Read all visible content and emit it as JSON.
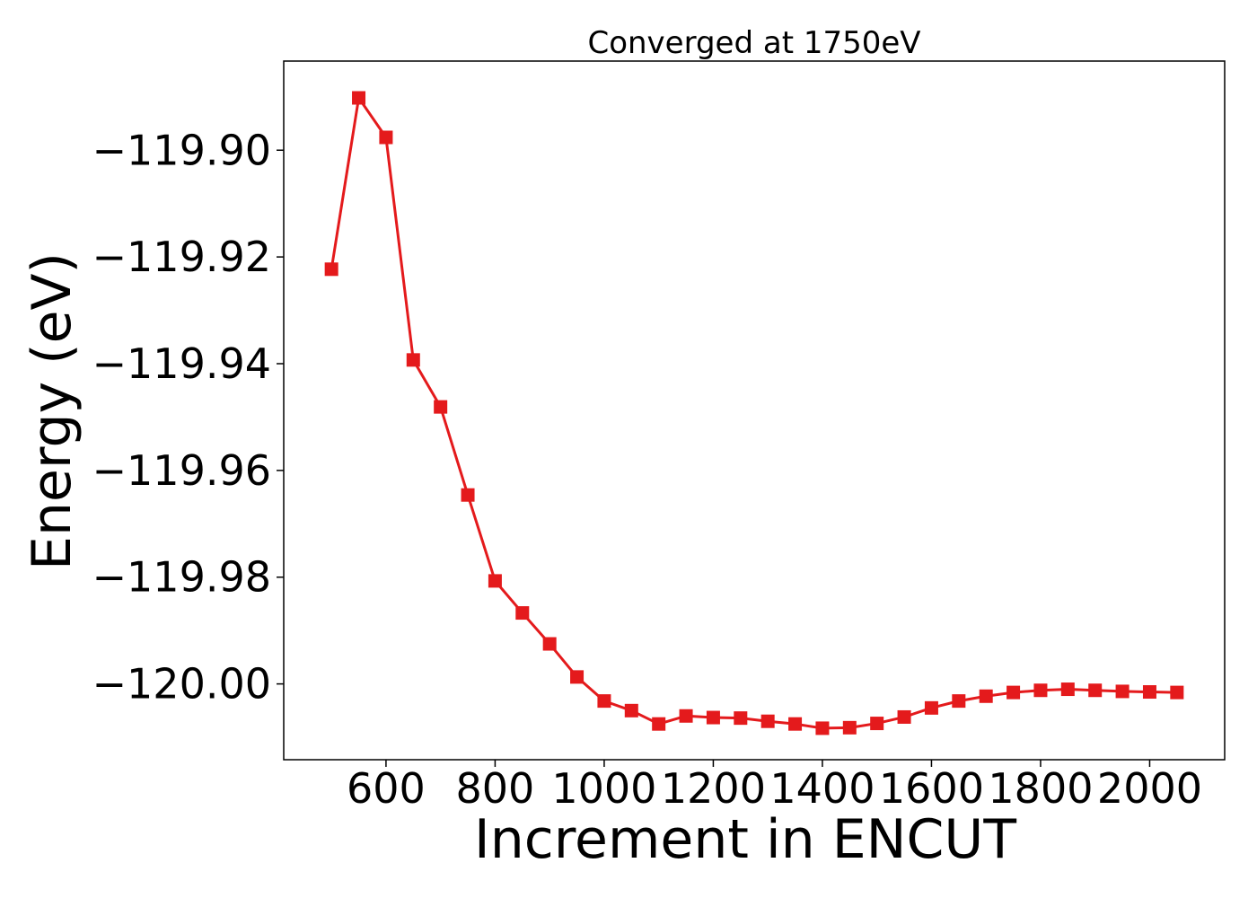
{
  "chart_data": {
    "type": "line",
    "title": "Converged at 1750eV",
    "xlabel": "Increment in ENCUT",
    "ylabel": "Energy (eV)",
    "xlim": [
      412.5,
      2137.5
    ],
    "ylim": [
      -120.0142,
      -119.8833
    ],
    "xticks": [
      600,
      800,
      1000,
      1200,
      1400,
      1600,
      1800,
      2000
    ],
    "xtick_labels": [
      "600",
      "800",
      "1000",
      "1200",
      "1400",
      "1600",
      "1800",
      "2000"
    ],
    "yticks": [
      -119.9,
      -119.92,
      -119.94,
      -119.96,
      -119.98,
      -120.0
    ],
    "ytick_labels": [
      "−119.90",
      "−119.92",
      "−119.94",
      "−119.96",
      "−119.98",
      "−120.00"
    ],
    "grid": false,
    "series": [
      {
        "color": "#e41a1c",
        "marker": "square",
        "x": [
          500,
          550,
          600,
          650,
          700,
          750,
          800,
          850,
          900,
          950,
          1000,
          1050,
          1100,
          1150,
          1200,
          1250,
          1300,
          1350,
          1400,
          1450,
          1500,
          1550,
          1600,
          1650,
          1700,
          1750,
          1800,
          1850,
          1900,
          1950,
          2000,
          2050
        ],
        "y": [
          -119.9223,
          -119.8902,
          -119.8976,
          -119.9393,
          -119.9481,
          -119.9646,
          -119.9807,
          -119.9867,
          -119.9925,
          -119.9987,
          -120.0032,
          -120.005,
          -120.0075,
          -120.006,
          -120.0063,
          -120.0064,
          -120.007,
          -120.0075,
          -120.0083,
          -120.0082,
          -120.0074,
          -120.0062,
          -120.0045,
          -120.0032,
          -120.0023,
          -120.0016,
          -120.0012,
          -120.001,
          -120.0012,
          -120.0014,
          -120.0015,
          -120.0016
        ]
      }
    ]
  }
}
